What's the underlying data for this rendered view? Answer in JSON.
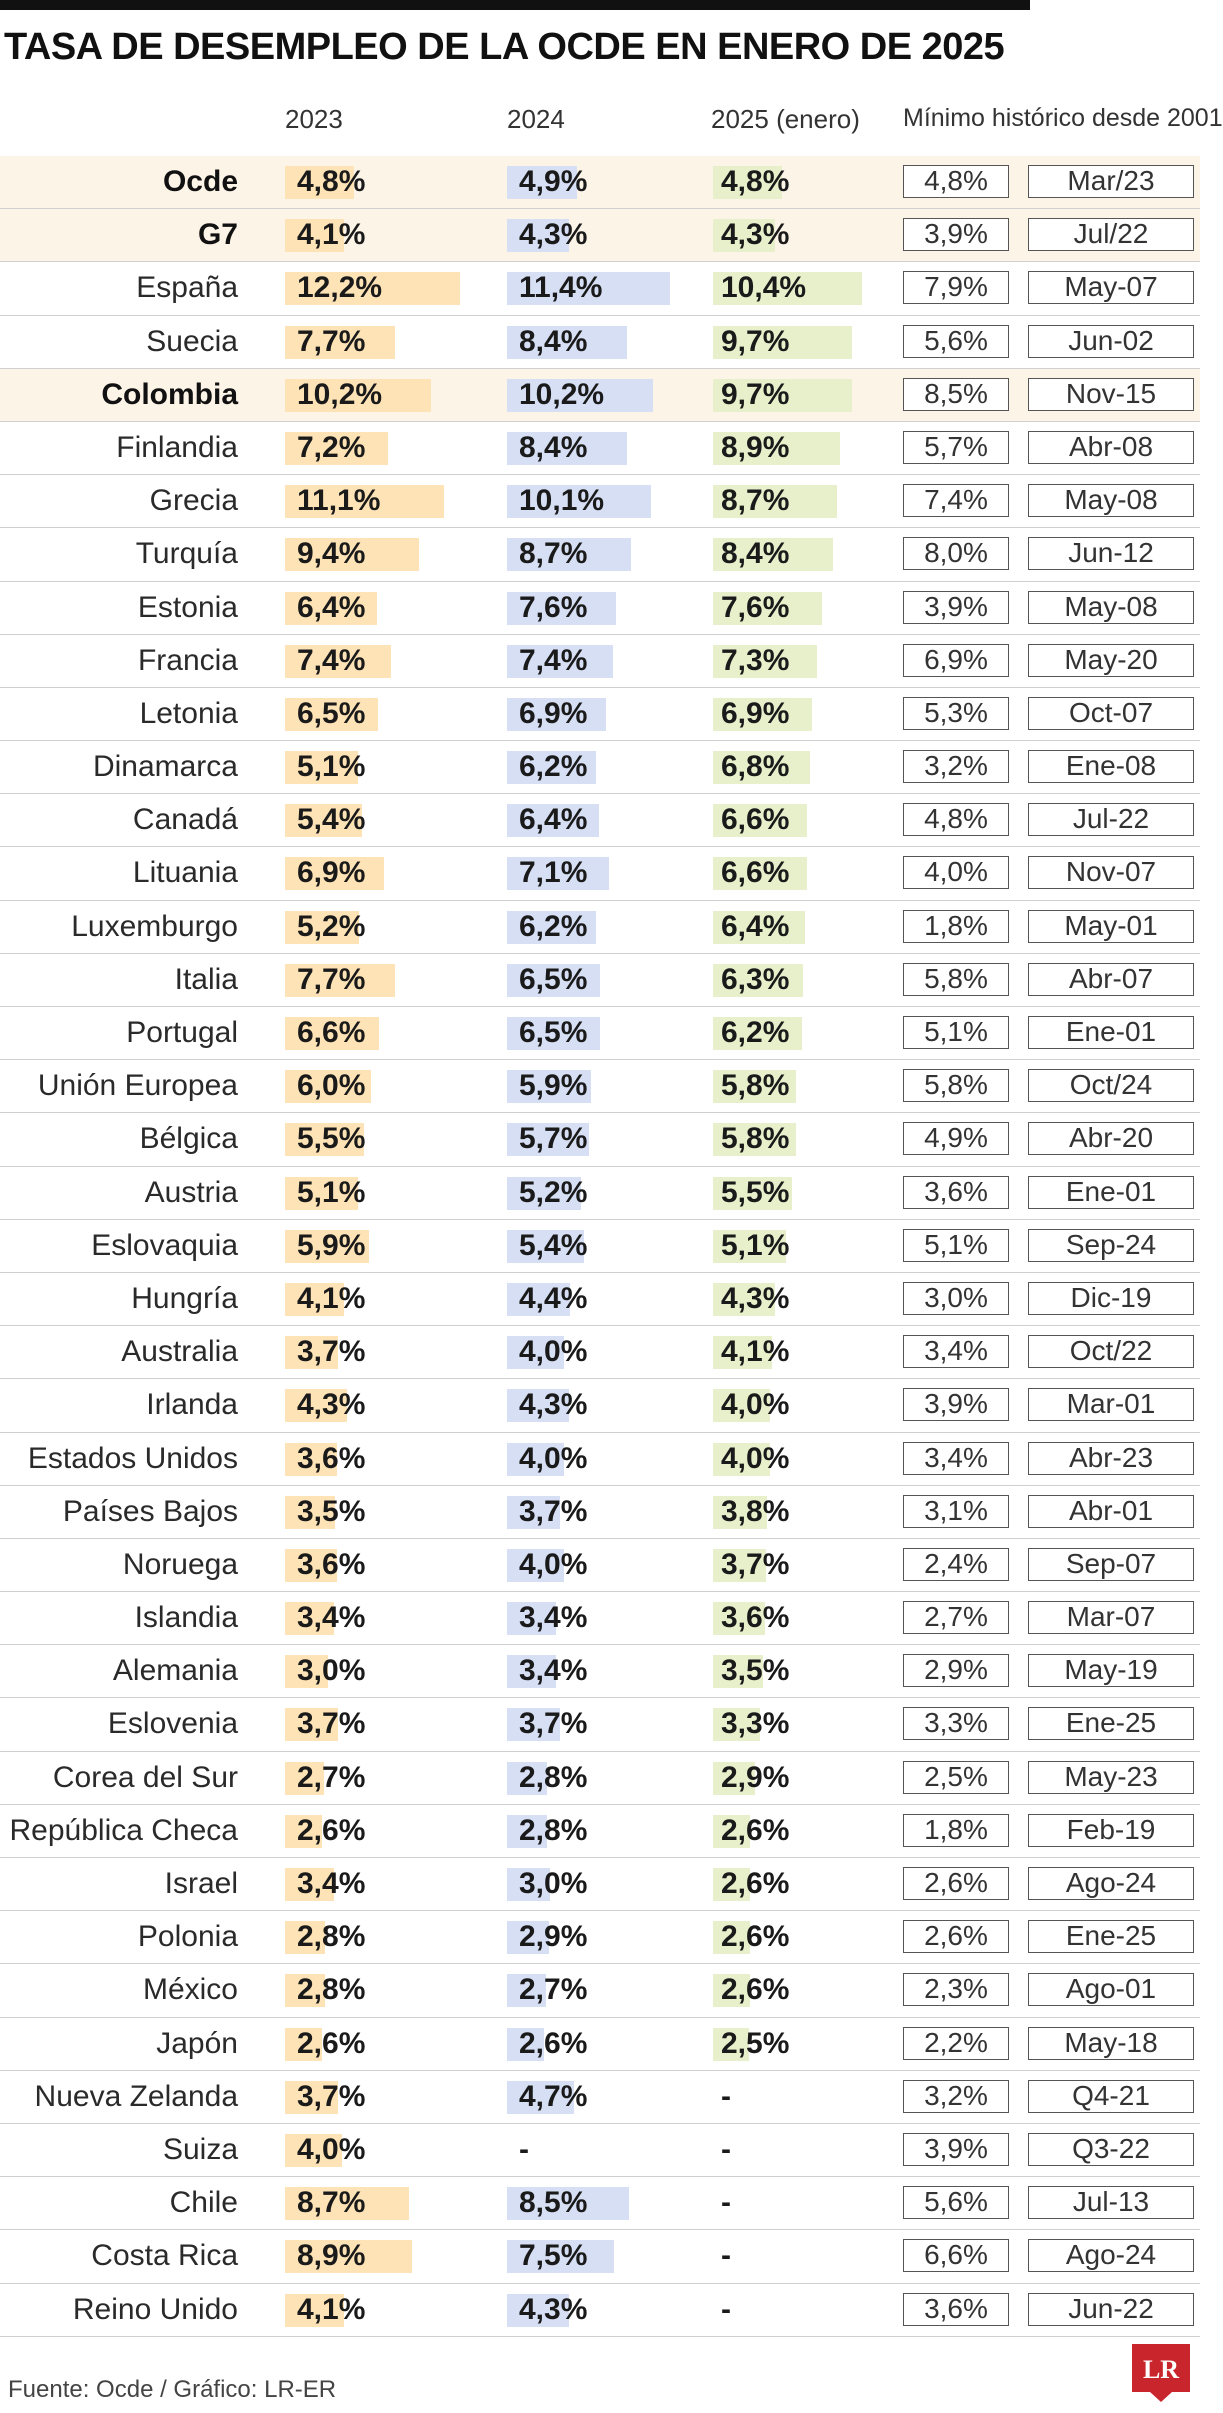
{
  "chart_data": {
    "type": "table",
    "title": "TASA DE DESEMPLEO DE LA OCDE EN ENERO DE 2025",
    "columns": [
      "2023",
      "2024",
      "2025 (enero)",
      "Mínimo histórico desde 2001"
    ],
    "rows": [
      {
        "country": "Ocde",
        "v2023": "4,8%",
        "v2024": "4,9%",
        "v2025": "4,8%",
        "min": "4,8%",
        "date": "Mar/23",
        "n2023": 4.8,
        "n2024": 4.9,
        "n2025": 4.8,
        "highlight": true
      },
      {
        "country": "G7",
        "v2023": "4,1%",
        "v2024": "4,3%",
        "v2025": "4,3%",
        "min": "3,9%",
        "date": "Jul/22",
        "n2023": 4.1,
        "n2024": 4.3,
        "n2025": 4.3,
        "highlight": true
      },
      {
        "country": "España",
        "v2023": "12,2%",
        "v2024": "11,4%",
        "v2025": "10,4%",
        "min": "7,9%",
        "date": "May-07",
        "n2023": 12.2,
        "n2024": 11.4,
        "n2025": 10.4,
        "highlight": false
      },
      {
        "country": "Suecia",
        "v2023": "7,7%",
        "v2024": "8,4%",
        "v2025": "9,7%",
        "min": "5,6%",
        "date": "Jun-02",
        "n2023": 7.7,
        "n2024": 8.4,
        "n2025": 9.7,
        "highlight": false
      },
      {
        "country": "Colombia",
        "v2023": "10,2%",
        "v2024": "10,2%",
        "v2025": "9,7%",
        "min": "8,5%",
        "date": "Nov-15",
        "n2023": 10.2,
        "n2024": 10.2,
        "n2025": 9.7,
        "highlight": true
      },
      {
        "country": "Finlandia",
        "v2023": "7,2%",
        "v2024": "8,4%",
        "v2025": "8,9%",
        "min": "5,7%",
        "date": "Abr-08",
        "n2023": 7.2,
        "n2024": 8.4,
        "n2025": 8.9,
        "highlight": false
      },
      {
        "country": "Grecia",
        "v2023": "11,1%",
        "v2024": "10,1%",
        "v2025": "8,7%",
        "min": "7,4%",
        "date": "May-08",
        "n2023": 11.1,
        "n2024": 10.1,
        "n2025": 8.7,
        "highlight": false
      },
      {
        "country": "Turquía",
        "v2023": "9,4%",
        "v2024": "8,7%",
        "v2025": "8,4%",
        "min": "8,0%",
        "date": "Jun-12",
        "n2023": 9.4,
        "n2024": 8.7,
        "n2025": 8.4,
        "highlight": false
      },
      {
        "country": "Estonia",
        "v2023": "6,4%",
        "v2024": "7,6%",
        "v2025": "7,6%",
        "min": "3,9%",
        "date": "May-08",
        "n2023": 6.4,
        "n2024": 7.6,
        "n2025": 7.6,
        "highlight": false
      },
      {
        "country": "Francia",
        "v2023": "7,4%",
        "v2024": "7,4%",
        "v2025": "7,3%",
        "min": "6,9%",
        "date": "May-20",
        "n2023": 7.4,
        "n2024": 7.4,
        "n2025": 7.3,
        "highlight": false
      },
      {
        "country": "Letonia",
        "v2023": "6,5%",
        "v2024": "6,9%",
        "v2025": "6,9%",
        "min": "5,3%",
        "date": "Oct-07",
        "n2023": 6.5,
        "n2024": 6.9,
        "n2025": 6.9,
        "highlight": false
      },
      {
        "country": "Dinamarca",
        "v2023": "5,1%",
        "v2024": "6,2%",
        "v2025": "6,8%",
        "min": "3,2%",
        "date": "Ene-08",
        "n2023": 5.1,
        "n2024": 6.2,
        "n2025": 6.8,
        "highlight": false
      },
      {
        "country": "Canadá",
        "v2023": "5,4%",
        "v2024": "6,4%",
        "v2025": "6,6%",
        "min": "4,8%",
        "date": "Jul-22",
        "n2023": 5.4,
        "n2024": 6.4,
        "n2025": 6.6,
        "highlight": false
      },
      {
        "country": "Lituania",
        "v2023": "6,9%",
        "v2024": "7,1%",
        "v2025": "6,6%",
        "min": "4,0%",
        "date": "Nov-07",
        "n2023": 6.9,
        "n2024": 7.1,
        "n2025": 6.6,
        "highlight": false
      },
      {
        "country": "Luxemburgo",
        "v2023": "5,2%",
        "v2024": "6,2%",
        "v2025": "6,4%",
        "min": "1,8%",
        "date": "May-01",
        "n2023": 5.2,
        "n2024": 6.2,
        "n2025": 6.4,
        "highlight": false
      },
      {
        "country": "Italia",
        "v2023": "7,7%",
        "v2024": "6,5%",
        "v2025": "6,3%",
        "min": "5,8%",
        "date": "Abr-07",
        "n2023": 7.7,
        "n2024": 6.5,
        "n2025": 6.3,
        "highlight": false
      },
      {
        "country": "Portugal",
        "v2023": "6,6%",
        "v2024": "6,5%",
        "v2025": "6,2%",
        "min": "5,1%",
        "date": "Ene-01",
        "n2023": 6.6,
        "n2024": 6.5,
        "n2025": 6.2,
        "highlight": false
      },
      {
        "country": "Unión Europea",
        "v2023": "6,0%",
        "v2024": "5,9%",
        "v2025": "5,8%",
        "min": "5,8%",
        "date": "Oct/24",
        "n2023": 6.0,
        "n2024": 5.9,
        "n2025": 5.8,
        "highlight": false
      },
      {
        "country": "Bélgica",
        "v2023": "5,5%",
        "v2024": "5,7%",
        "v2025": "5,8%",
        "min": "4,9%",
        "date": "Abr-20",
        "n2023": 5.5,
        "n2024": 5.7,
        "n2025": 5.8,
        "highlight": false
      },
      {
        "country": "Austria",
        "v2023": "5,1%",
        "v2024": "5,2%",
        "v2025": "5,5%",
        "min": "3,6%",
        "date": "Ene-01",
        "n2023": 5.1,
        "n2024": 5.2,
        "n2025": 5.5,
        "highlight": false
      },
      {
        "country": "Eslovaquia",
        "v2023": "5,9%",
        "v2024": "5,4%",
        "v2025": "5,1%",
        "min": "5,1%",
        "date": "Sep-24",
        "n2023": 5.9,
        "n2024": 5.4,
        "n2025": 5.1,
        "highlight": false
      },
      {
        "country": "Hungría",
        "v2023": "4,1%",
        "v2024": "4,4%",
        "v2025": "4,3%",
        "min": "3,0%",
        "date": "Dic-19",
        "n2023": 4.1,
        "n2024": 4.4,
        "n2025": 4.3,
        "highlight": false
      },
      {
        "country": "Australia",
        "v2023": "3,7%",
        "v2024": "4,0%",
        "v2025": "4,1%",
        "min": "3,4%",
        "date": "Oct/22",
        "n2023": 3.7,
        "n2024": 4.0,
        "n2025": 4.1,
        "highlight": false
      },
      {
        "country": "Irlanda",
        "v2023": "4,3%",
        "v2024": "4,3%",
        "v2025": "4,0%",
        "min": "3,9%",
        "date": "Mar-01",
        "n2023": 4.3,
        "n2024": 4.3,
        "n2025": 4.0,
        "highlight": false
      },
      {
        "country": "Estados Unidos",
        "v2023": "3,6%",
        "v2024": "4,0%",
        "v2025": "4,0%",
        "min": "3,4%",
        "date": "Abr-23",
        "n2023": 3.6,
        "n2024": 4.0,
        "n2025": 4.0,
        "highlight": false
      },
      {
        "country": "Países Bajos",
        "v2023": "3,5%",
        "v2024": "3,7%",
        "v2025": "3,8%",
        "min": "3,1%",
        "date": "Abr-01",
        "n2023": 3.5,
        "n2024": 3.7,
        "n2025": 3.8,
        "highlight": false
      },
      {
        "country": "Noruega",
        "v2023": "3,6%",
        "v2024": "4,0%",
        "v2025": "3,7%",
        "min": "2,4%",
        "date": "Sep-07",
        "n2023": 3.6,
        "n2024": 4.0,
        "n2025": 3.7,
        "highlight": false
      },
      {
        "country": "Islandia",
        "v2023": "3,4%",
        "v2024": "3,4%",
        "v2025": "3,6%",
        "min": "2,7%",
        "date": "Mar-07",
        "n2023": 3.4,
        "n2024": 3.4,
        "n2025": 3.6,
        "highlight": false
      },
      {
        "country": "Alemania",
        "v2023": "3,0%",
        "v2024": "3,4%",
        "v2025": "3,5%",
        "min": "2,9%",
        "date": "May-19",
        "n2023": 3.0,
        "n2024": 3.4,
        "n2025": 3.5,
        "highlight": false
      },
      {
        "country": "Eslovenia",
        "v2023": "3,7%",
        "v2024": "3,7%",
        "v2025": "3,3%",
        "min": "3,3%",
        "date": "Ene-25",
        "n2023": 3.7,
        "n2024": 3.7,
        "n2025": 3.3,
        "highlight": false
      },
      {
        "country": "Corea del Sur",
        "v2023": "2,7%",
        "v2024": "2,8%",
        "v2025": "2,9%",
        "min": "2,5%",
        "date": "May-23",
        "n2023": 2.7,
        "n2024": 2.8,
        "n2025": 2.9,
        "highlight": false
      },
      {
        "country": "República Checa",
        "v2023": "2,6%",
        "v2024": "2,8%",
        "v2025": "2,6%",
        "min": "1,8%",
        "date": "Feb-19",
        "n2023": 2.6,
        "n2024": 2.8,
        "n2025": 2.6,
        "highlight": false
      },
      {
        "country": "Israel",
        "v2023": "3,4%",
        "v2024": "3,0%",
        "v2025": "2,6%",
        "min": "2,6%",
        "date": "Ago-24",
        "n2023": 3.4,
        "n2024": 3.0,
        "n2025": 2.6,
        "highlight": false
      },
      {
        "country": "Polonia",
        "v2023": "2,8%",
        "v2024": "2,9%",
        "v2025": "2,6%",
        "min": "2,6%",
        "date": "Ene-25",
        "n2023": 2.8,
        "n2024": 2.9,
        "n2025": 2.6,
        "highlight": false
      },
      {
        "country": "México",
        "v2023": "2,8%",
        "v2024": "2,7%",
        "v2025": "2,6%",
        "min": "2,3%",
        "date": "Ago-01",
        "n2023": 2.8,
        "n2024": 2.7,
        "n2025": 2.6,
        "highlight": false
      },
      {
        "country": "Japón",
        "v2023": "2,6%",
        "v2024": "2,6%",
        "v2025": "2,5%",
        "min": "2,2%",
        "date": "May-18",
        "n2023": 2.6,
        "n2024": 2.6,
        "n2025": 2.5,
        "highlight": false
      },
      {
        "country": "Nueva Zelanda",
        "v2023": "3,7%",
        "v2024": "4,7%",
        "v2025": "-",
        "min": "3,2%",
        "date": "Q4-21",
        "n2023": 3.7,
        "n2024": 4.7,
        "n2025": null,
        "highlight": false
      },
      {
        "country": "Suiza",
        "v2023": "4,0%",
        "v2024": "-",
        "v2025": "-",
        "min": "3,9%",
        "date": "Q3-22",
        "n2023": 4.0,
        "n2024": null,
        "n2025": null,
        "highlight": false
      },
      {
        "country": "Chile",
        "v2023": "8,7%",
        "v2024": "8,5%",
        "v2025": "-",
        "min": "5,6%",
        "date": "Jul-13",
        "n2023": 8.7,
        "n2024": 8.5,
        "n2025": null,
        "highlight": false
      },
      {
        "country": "Costa Rica",
        "v2023": "8,9%",
        "v2024": "7,5%",
        "v2025": "-",
        "min": "6,6%",
        "date": "Ago-24",
        "n2023": 8.9,
        "n2024": 7.5,
        "n2025": null,
        "highlight": false
      },
      {
        "country": "Reino Unido",
        "v2023": "4,1%",
        "v2024": "4,3%",
        "v2025": "-",
        "min": "3,6%",
        "date": "Jun-22",
        "n2023": 4.1,
        "n2024": 4.3,
        "n2025": null,
        "highlight": false
      }
    ]
  },
  "footer": "Fuente: Ocde / Gráfico: LR-ER",
  "logo": "LR",
  "colors": {
    "bar2023": "#fde3b5",
    "bar2024": "#d6dff4",
    "bar2025": "#e8efcb",
    "highlight_row": "#fdf4e8",
    "logo": "#c8262c"
  }
}
